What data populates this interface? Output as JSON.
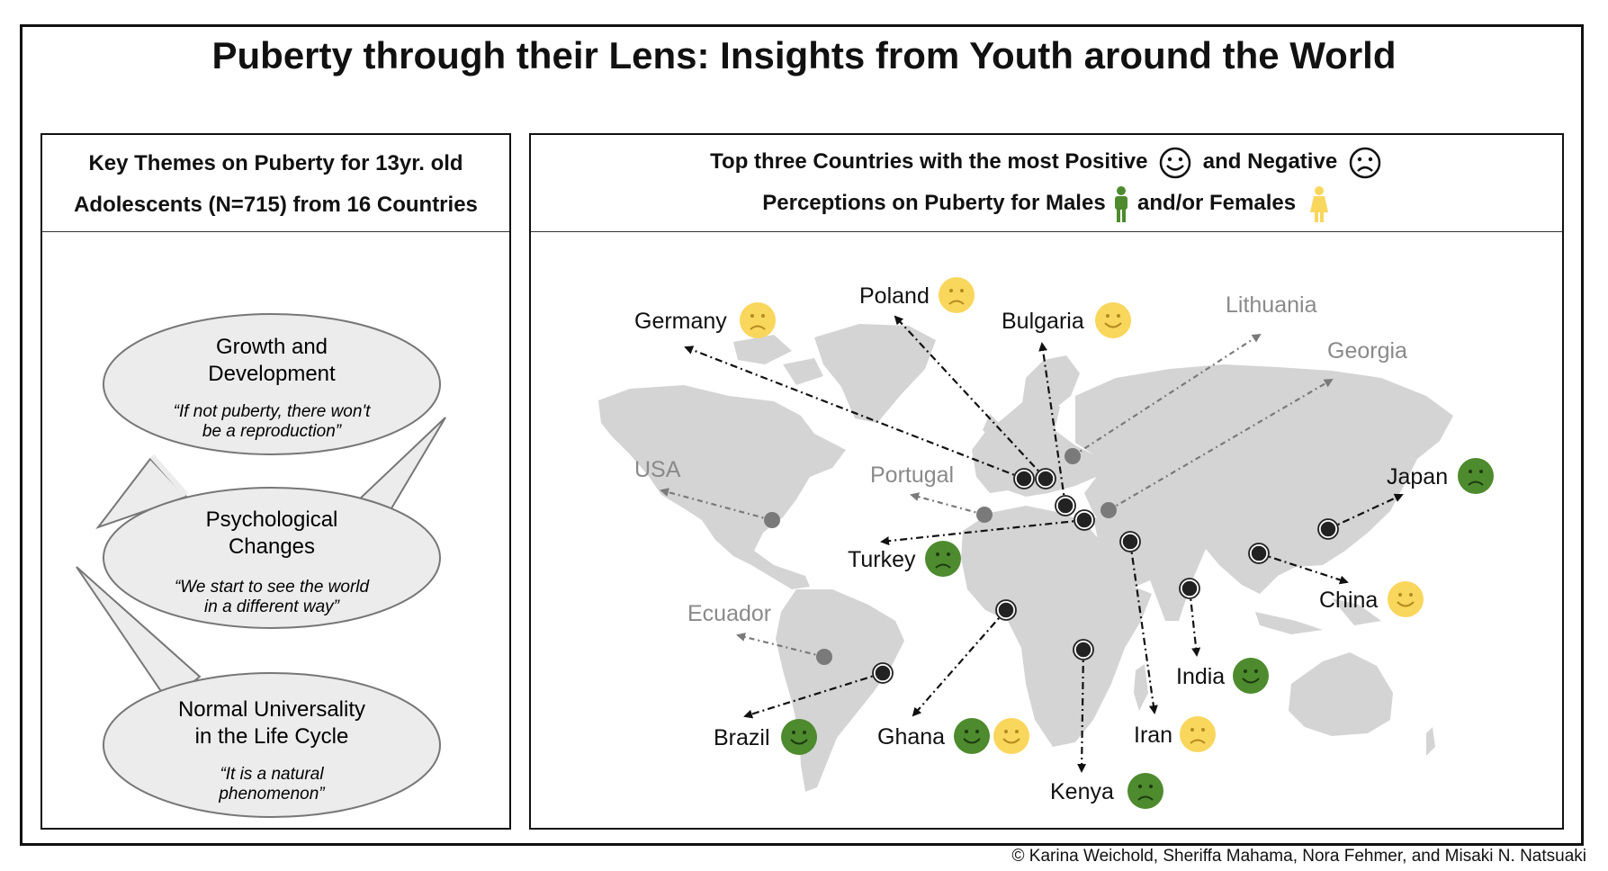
{
  "title": "Puberty through their Lens: Insights from Youth around the World",
  "left_panel": {
    "heading_line1": "Key Themes on Puberty for 13yr. old",
    "heading_line2": "Adolescents (N=715) from 16 Countries",
    "themes": [
      {
        "title_line1": "Growth and",
        "title_line2": "Development",
        "quote_line1": "“If not puberty, there won't",
        "quote_line2": "be a reproduction”"
      },
      {
        "title_line1": "Psychological",
        "title_line2": "Changes",
        "quote_line1": "“We start to see the world",
        "quote_line2": "in a different way”"
      },
      {
        "title_line1": "Normal Universality",
        "title_line2": "in the Life Cycle",
        "quote_line1": "“It is a natural",
        "quote_line2": "phenomenon”"
      }
    ]
  },
  "right_panel": {
    "heading_line1_a": "Top three Countries with the most Positive",
    "heading_line1_b": "and Negative",
    "heading_line2_a": "Perceptions on Puberty for Males",
    "heading_line2_b": "and/or Females"
  },
  "legend_icons": {
    "positive": "smiley-face-icon",
    "negative": "frowning-face-icon",
    "male": "male-figure-icon",
    "female": "female-figure-icon"
  },
  "colors": {
    "male": "#4e8a2e",
    "female": "#f9d65c",
    "land": "#d4d4d4",
    "grey_label": "#8a8a8a"
  },
  "countries": [
    {
      "name": "Germany",
      "faces": [
        {
          "gender": "female",
          "mood": "negative"
        }
      ]
    },
    {
      "name": "Poland",
      "faces": [
        {
          "gender": "female",
          "mood": "negative"
        }
      ]
    },
    {
      "name": "Bulgaria",
      "faces": [
        {
          "gender": "female",
          "mood": "positive"
        }
      ]
    },
    {
      "name": "Lithuania",
      "faces": []
    },
    {
      "name": "Georgia",
      "faces": []
    },
    {
      "name": "USA",
      "faces": []
    },
    {
      "name": "Portugal",
      "faces": []
    },
    {
      "name": "Japan",
      "faces": [
        {
          "gender": "male",
          "mood": "negative"
        }
      ]
    },
    {
      "name": "Turkey",
      "faces": [
        {
          "gender": "male",
          "mood": "negative"
        }
      ]
    },
    {
      "name": "China",
      "faces": [
        {
          "gender": "female",
          "mood": "positive"
        }
      ]
    },
    {
      "name": "Ecuador",
      "faces": []
    },
    {
      "name": "India",
      "faces": [
        {
          "gender": "male",
          "mood": "positive"
        }
      ]
    },
    {
      "name": "Brazil",
      "faces": [
        {
          "gender": "male",
          "mood": "positive"
        }
      ]
    },
    {
      "name": "Ghana",
      "faces": [
        {
          "gender": "male",
          "mood": "positive"
        },
        {
          "gender": "female",
          "mood": "positive"
        }
      ]
    },
    {
      "name": "Iran",
      "faces": [
        {
          "gender": "female",
          "mood": "negative"
        }
      ]
    },
    {
      "name": "Kenya",
      "faces": [
        {
          "gender": "male",
          "mood": "negative"
        }
      ]
    }
  ],
  "copyright": "© Karina Weichold, Sheriffa Mahama, Nora Fehmer, and Misaki N. Natsuaki"
}
